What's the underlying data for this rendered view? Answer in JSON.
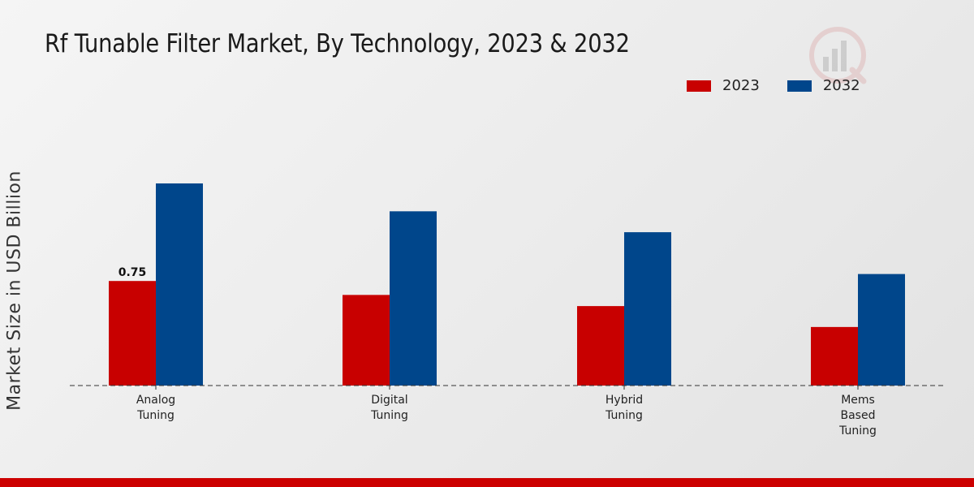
{
  "title": "Rf Tunable Filter Market, By Technology, 2023 & 2032",
  "colors": {
    "2023": "#c80000",
    "2032": "#00468b"
  },
  "legend": [
    {
      "label": "2023",
      "color": "#c80000"
    },
    {
      "label": "2032",
      "color": "#00468b"
    }
  ],
  "logo_icon": "bar-chart-logo-icon",
  "chart_data": {
    "type": "bar",
    "title": "Rf Tunable Filter Market, By Technology, 2023 & 2032",
    "xlabel": "",
    "ylabel": "Market Size in USD Billion",
    "categories": [
      [
        "Analog",
        "Tuning"
      ],
      [
        "Digital",
        "Tuning"
      ],
      [
        "Hybrid",
        "Tuning"
      ],
      [
        "Mems",
        "Based",
        "Tuning"
      ]
    ],
    "series": [
      {
        "name": "2023",
        "color": "#c80000",
        "values": [
          0.75,
          0.65,
          0.57,
          0.42
        ]
      },
      {
        "name": "2032",
        "color": "#00468b",
        "values": [
          1.45,
          1.25,
          1.1,
          0.8
        ]
      }
    ],
    "data_labels": [
      {
        "series": 0,
        "index": 0,
        "text": "0.75"
      }
    ],
    "ylim": [
      0,
      2.3
    ],
    "grid": false,
    "legend_position": "top-right"
  }
}
